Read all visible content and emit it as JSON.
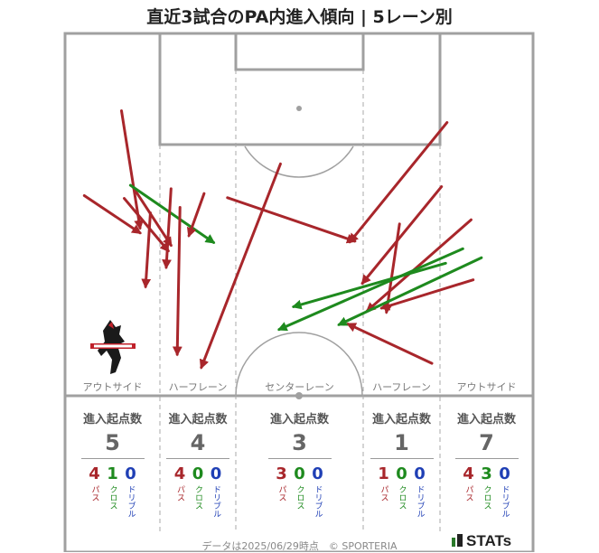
{
  "title": "直近3試合のPA内進入傾向 | 5レーン別",
  "colors": {
    "pass": "#a8262b",
    "cross": "#1e8a1e",
    "dribble": "#1f3fb5",
    "line": "#a0a0a0"
  },
  "lanes": [
    {
      "name": "アウトサイド",
      "header": "進入起点数",
      "total": "5",
      "breakdown": [
        {
          "value": "4",
          "label": "パス",
          "type": "pass"
        },
        {
          "value": "1",
          "label": "クロス",
          "type": "cross"
        },
        {
          "value": "0",
          "label": "ドリブル",
          "type": "dribble"
        }
      ]
    },
    {
      "name": "ハーフレーン",
      "header": "進入起点数",
      "total": "4",
      "breakdown": [
        {
          "value": "4",
          "label": "パス",
          "type": "pass"
        },
        {
          "value": "0",
          "label": "クロス",
          "type": "cross"
        },
        {
          "value": "0",
          "label": "ドリブル",
          "type": "dribble"
        }
      ]
    },
    {
      "name": "センターレーン",
      "header": "進入起点数",
      "total": "3",
      "breakdown": [
        {
          "value": "3",
          "label": "パス",
          "type": "pass"
        },
        {
          "value": "0",
          "label": "クロス",
          "type": "cross"
        },
        {
          "value": "0",
          "label": "ドリブル",
          "type": "dribble"
        }
      ]
    },
    {
      "name": "ハーフレーン",
      "header": "進入起点数",
      "total": "1",
      "breakdown": [
        {
          "value": "1",
          "label": "パス",
          "type": "pass"
        },
        {
          "value": "0",
          "label": "クロス",
          "type": "cross"
        },
        {
          "value": "0",
          "label": "ドリブル",
          "type": "dribble"
        }
      ]
    },
    {
      "name": "アウトサイド",
      "header": "進入起点数",
      "total": "7",
      "breakdown": [
        {
          "value": "4",
          "label": "パス",
          "type": "pass"
        },
        {
          "value": "3",
          "label": "クロス",
          "type": "cross"
        },
        {
          "value": "0",
          "label": "ドリブル",
          "type": "dribble"
        }
      ]
    }
  ],
  "footer": "データは2025/06/29時点　© SPORTERIA",
  "brand": "STATs",
  "logo": {
    "icon": "roasso-kumamoto-horse-crest",
    "text": "ROASSO KUMAMOTO"
  },
  "chart_data": {
    "type": "scatter",
    "x_axis": {
      "range": [
        0,
        68
      ],
      "unit": "m",
      "meaning": "pitch width (left to right)"
    },
    "y_axis": {
      "range": [
        0,
        52.5
      ],
      "unit": "m",
      "meaning": "distance from attacking goal line"
    },
    "arrows": [
      {
        "type": "pass",
        "from": [
          2.8,
          23.5
        ],
        "to": [
          10.9,
          28.9
        ]
      },
      {
        "type": "pass",
        "from": [
          8.2,
          11.2
        ],
        "to": [
          10.9,
          28.2
        ]
      },
      {
        "type": "pass",
        "from": [
          8.6,
          23.9
        ],
        "to": [
          15.0,
          31.5
        ]
      },
      {
        "type": "pass",
        "from": [
          9.9,
          22.3
        ],
        "to": [
          15.4,
          30.7
        ]
      },
      {
        "type": "pass",
        "from": [
          12.4,
          26.0
        ],
        "to": [
          11.7,
          36.7
        ]
      },
      {
        "type": "cross",
        "from": [
          9.5,
          22.0
        ],
        "to": [
          21.6,
          30.3
        ]
      },
      {
        "type": "pass",
        "from": [
          15.4,
          22.5
        ],
        "to": [
          14.7,
          33.9
        ]
      },
      {
        "type": "pass",
        "from": [
          16.7,
          25.2
        ],
        "to": [
          16.3,
          46.5
        ]
      },
      {
        "type": "pass",
        "from": [
          20.2,
          23.2
        ],
        "to": [
          18.0,
          29.3
        ]
      },
      {
        "type": "pass",
        "from": [
          31.3,
          18.9
        ],
        "to": [
          19.8,
          48.4
        ]
      },
      {
        "type": "pass",
        "from": [
          23.6,
          23.8
        ],
        "to": [
          42.1,
          30.1
        ]
      },
      {
        "type": "pass",
        "from": [
          55.5,
          12.9
        ],
        "to": [
          41.4,
          30.2
        ]
      },
      {
        "type": "pass",
        "from": [
          59.0,
          27.0
        ],
        "to": [
          43.9,
          40.2
        ]
      },
      {
        "type": "pass",
        "from": [
          54.7,
          22.2
        ],
        "to": [
          43.2,
          36.2
        ]
      },
      {
        "type": "pass",
        "from": [
          59.3,
          35.7
        ],
        "to": [
          46.0,
          39.8
        ]
      },
      {
        "type": "pass",
        "from": [
          53.3,
          47.8
        ],
        "to": [
          41.1,
          42.1
        ]
      },
      {
        "type": "pass",
        "from": [
          48.6,
          27.6
        ],
        "to": [
          46.7,
          40.4
        ]
      },
      {
        "type": "cross",
        "from": [
          57.8,
          31.2
        ],
        "to": [
          31.1,
          42.9
        ]
      },
      {
        "type": "cross",
        "from": [
          55.3,
          33.3
        ],
        "to": [
          33.2,
          39.6
        ]
      },
      {
        "type": "cross",
        "from": [
          60.5,
          32.5
        ],
        "to": [
          39.8,
          42.2
        ]
      }
    ]
  }
}
